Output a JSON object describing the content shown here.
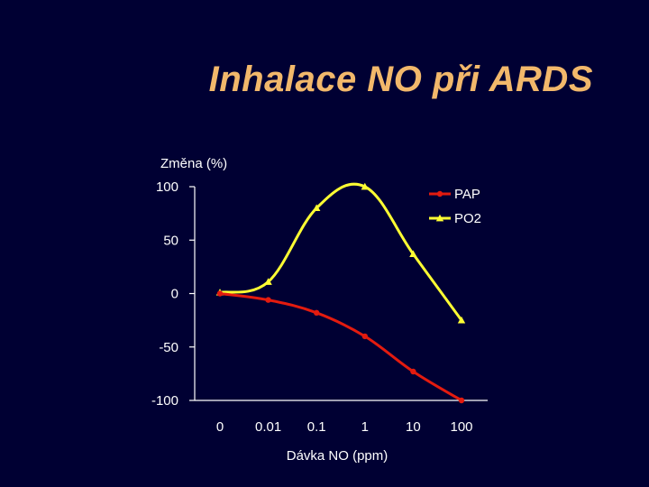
{
  "slide": {
    "title": "Inhalace NO při ARDS"
  },
  "chart_data": {
    "type": "line",
    "ylabel": "Změna (%)",
    "xlabel": "Dávka NO (ppm)",
    "categories": [
      "0",
      "0.01",
      "0.1",
      "1",
      "10",
      "100"
    ],
    "yticks": [
      "100",
      "50",
      "0",
      "-50",
      "-100"
    ],
    "ylim": [
      -100,
      100
    ],
    "grid": false,
    "legend_position": "top-right",
    "series": [
      {
        "name": "PAP",
        "color": "#E31B0F",
        "marker": "circle",
        "values": [
          0,
          -6,
          -18,
          -40,
          -73,
          -100
        ]
      },
      {
        "name": "PO2",
        "color": "#FFFF33",
        "marker": "triangle",
        "values": [
          1,
          11,
          80,
          100,
          37,
          -25
        ]
      }
    ]
  }
}
